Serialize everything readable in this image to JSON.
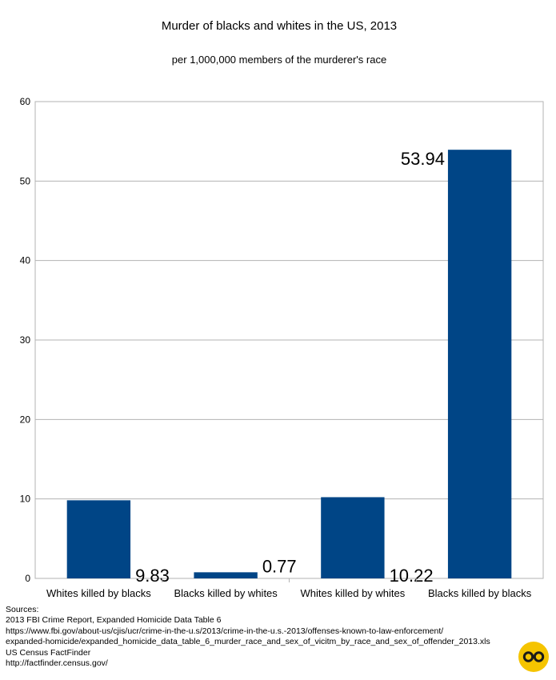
{
  "chart_data": {
    "type": "bar",
    "title": "Murder of blacks and whites in the US, 2013",
    "subtitle": "per 1,000,000 members of the murderer's race",
    "categories": [
      "Whites killed by blacks",
      "Blacks killed by whites",
      "Whites killed by whites",
      "Blacks killed by blacks"
    ],
    "values": [
      9.83,
      0.77,
      10.22,
      53.94
    ],
    "value_labels": [
      "9.83",
      "0.77",
      "10.22",
      "53.94"
    ],
    "ylim": [
      0,
      60
    ],
    "yticks": [
      0,
      10,
      20,
      30,
      40,
      50,
      60
    ],
    "grid": true,
    "legend": "none",
    "bar_color": "#004586"
  },
  "sources": [
    "Sources:",
    "2013 FBI Crime Report, Expanded Homicide Data Table 6",
    "https://www.fbi.gov/about-us/cjis/ucr/crime-in-the-u.s/2013/crime-in-the-u.s.-2013/offenses-known-to-law-enforcement/",
    "expanded-homicide/expanded_homicide_data_table_6_murder_race_and_sex_of_vicitm_by_race_and_sex_of_offender_2013.xls",
    "US Census FactFinder",
    "http://factfinder.census.gov/"
  ],
  "logo": {
    "icon": "double-circle-logo-icon",
    "color": "#f5c400"
  }
}
